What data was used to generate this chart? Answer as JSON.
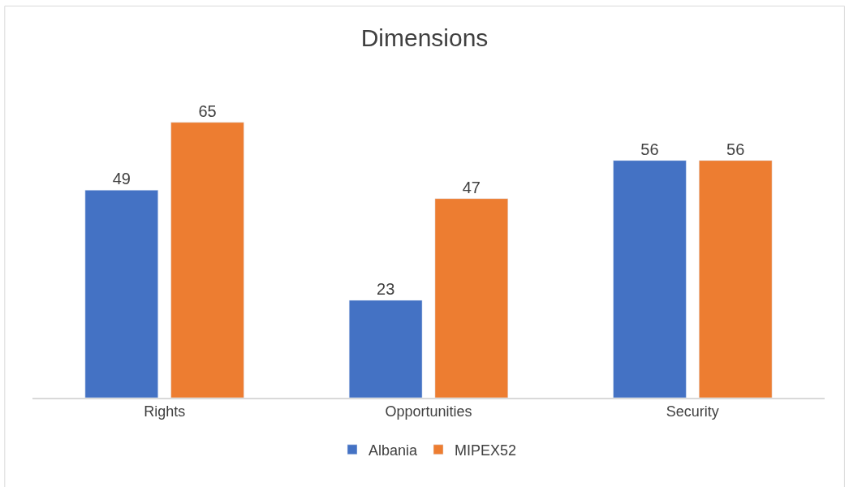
{
  "chart_data": {
    "type": "bar",
    "title": "Dimensions",
    "categories": [
      "Rights",
      "Opportunities",
      "Security"
    ],
    "series": [
      {
        "name": "Albania",
        "color": "#4472c4",
        "values": [
          49,
          23,
          56
        ]
      },
      {
        "name": "MIPEX52",
        "color": "#ed7d31",
        "values": [
          65,
          47,
          56
        ]
      }
    ],
    "data_labels": true,
    "legend": "bottom"
  }
}
